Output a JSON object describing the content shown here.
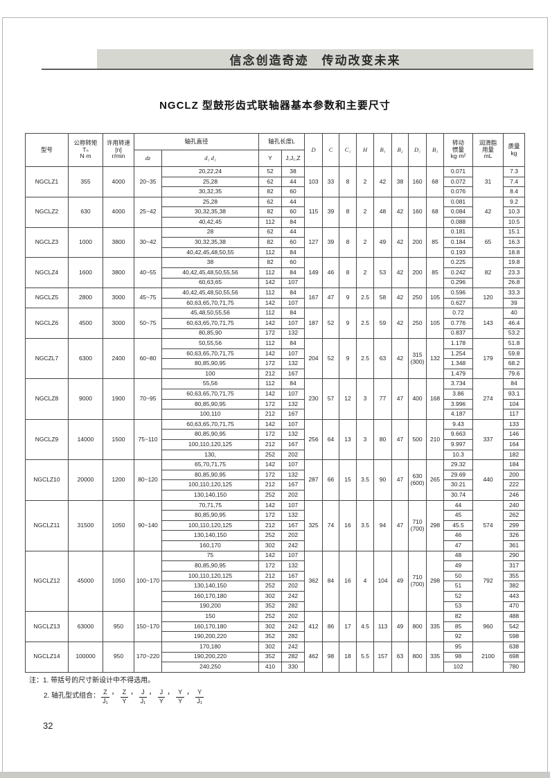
{
  "banner": {
    "slogan": "信念创造奇迹　传动改变未来"
  },
  "doc": {
    "title": "NGCLZ 型鼓形齿式联轴器基本参数和主要尺寸",
    "page_number": "32"
  },
  "colors": {
    "banner_bg": "#d7d7d2",
    "rule": "#5c5c5a",
    "table_border": "#454545"
  },
  "table": {
    "headers": {
      "model": "型号",
      "torque": "公称转矩\nTₙ\nN·m",
      "speed": "许用转速\n[n]\nr/min",
      "bore_dia": "轴孔直径",
      "bore_len": "轴孔长度L",
      "sub_dz": "dᴢ",
      "sub_d1d2": "d₁ d₂",
      "sub_y": "Y",
      "sub_jjz": "J,J₁,Z",
      "dims": [
        "D",
        "C",
        "C₁",
        "H",
        "B₁",
        "B₂",
        "D₁",
        "B₃"
      ],
      "inertia": "转动\n惯量\nkg·m²",
      "grease": "润滑脂\n用量\nmL",
      "mass": "质量\nkg"
    },
    "rows": [
      {
        "model": "NGCLZ1",
        "torque": "355",
        "speed": "4000",
        "range": "20~35",
        "dims": [
          "103",
          "33",
          "8",
          "2",
          "42",
          "38",
          "160",
          "68"
        ],
        "grease": "31",
        "sub": [
          {
            "d": "20,22,24",
            "y": "52",
            "l": "38",
            "j": "0.071",
            "m": "7.3"
          },
          {
            "d": "25,28",
            "y": "62",
            "l": "44",
            "j": "0.072",
            "m": "7.4"
          },
          {
            "d": "30,32,35",
            "y": "82",
            "l": "60",
            "j": "0.076",
            "m": "8.4"
          }
        ]
      },
      {
        "model": "NGCLZ2",
        "torque": "630",
        "speed": "4000",
        "range": "25~42",
        "dims": [
          "115",
          "39",
          "8",
          "2",
          "48",
          "42",
          "160",
          "68"
        ],
        "grease": "42",
        "sub": [
          {
            "d": "25,28",
            "y": "62",
            "l": "44",
            "j": "0.081",
            "m": "9.2"
          },
          {
            "d": "30,32,35,38",
            "y": "82",
            "l": "60",
            "j": "0.084",
            "m": "10.3"
          },
          {
            "d": "40,42,45",
            "y": "112",
            "l": "84",
            "j": "0.088",
            "m": "10.5"
          }
        ]
      },
      {
        "model": "NGCLZ3",
        "torque": "1000",
        "speed": "3800",
        "range": "30~42",
        "dims": [
          "127",
          "39",
          "8",
          "2",
          "49",
          "42",
          "200",
          "85"
        ],
        "grease": "65",
        "sub": [
          {
            "d": "28",
            "y": "62",
            "l": "44",
            "j": "0.181",
            "m": "15.1"
          },
          {
            "d": "30,32,35,38",
            "y": "82",
            "l": "60",
            "j": "0.184",
            "m": "16.3"
          },
          {
            "d": "40,42,45,48,50,55",
            "y": "112",
            "l": "84",
            "j": "0.193",
            "m": "18.8"
          }
        ]
      },
      {
        "model": "NGCLZ4",
        "torque": "1600",
        "speed": "3800",
        "range": "40~55",
        "dims": [
          "149",
          "46",
          "8",
          "2",
          "53",
          "42",
          "200",
          "85"
        ],
        "grease": "82",
        "sub": [
          {
            "d": "38",
            "y": "82",
            "l": "60",
            "j": "0.225",
            "m": "19.8"
          },
          {
            "d": "40,42,45,48,50,55,56",
            "y": "112",
            "l": "84",
            "j": "0.242",
            "m": "23.3"
          },
          {
            "d": "60,63,65",
            "y": "142",
            "l": "107",
            "j": "0.296",
            "m": "26.8"
          }
        ]
      },
      {
        "model": "NGCLZ5",
        "torque": "2800",
        "speed": "3000",
        "range": "45~75",
        "dims": [
          "167",
          "47",
          "9",
          "2.5",
          "58",
          "42",
          "250",
          "105"
        ],
        "grease": "120",
        "sub": [
          {
            "d": "40,42,45,48,50,55,56",
            "y": "112",
            "l": "84",
            "j": "0.596",
            "m": "33.3"
          },
          {
            "d": "60,63,65,70,71,75",
            "y": "142",
            "l": "107",
            "j": "0.627",
            "m": "39"
          }
        ]
      },
      {
        "model": "NGCLZ6",
        "torque": "4500",
        "speed": "3000",
        "range": "50~75",
        "dims": [
          "187",
          "52",
          "9",
          "2.5",
          "59",
          "42",
          "250",
          "105"
        ],
        "grease": "143",
        "sub": [
          {
            "d": "45,48,50,55,56",
            "y": "112",
            "l": "84",
            "j": "0.72",
            "m": "40"
          },
          {
            "d": "60,63,65,70,71,75",
            "y": "142",
            "l": "107",
            "j": "0.776",
            "m": "46.4"
          },
          {
            "d": "80,85,90",
            "y": "172",
            "l": "132",
            "j": "0.837",
            "m": "53.2"
          }
        ]
      },
      {
        "model": "NGCZL7",
        "torque": "6300",
        "speed": "2400",
        "range": "60~80",
        "dims": [
          "204",
          "52",
          "9",
          "2.5",
          "63",
          "42",
          "315\n(300)",
          "132"
        ],
        "grease": "179",
        "sub": [
          {
            "d": "50,55,56",
            "y": "112",
            "l": "84",
            "j": "1.178",
            "m": "51.8"
          },
          {
            "d": "60,63,65,70,71,75",
            "y": "142",
            "l": "107",
            "j": "1.254",
            "m": "59.8"
          },
          {
            "d": "80,85,90,95",
            "y": "172",
            "l": "132",
            "j": "1.348",
            "m": "68.2"
          },
          {
            "d": "100",
            "y": "212",
            "l": "167",
            "j": "1.479",
            "m": "79.6"
          }
        ]
      },
      {
        "model": "NGCLZ8",
        "torque": "9000",
        "speed": "1900",
        "range": "70~95",
        "dims": [
          "230",
          "57",
          "12",
          "3",
          "77",
          "47",
          "400",
          "168"
        ],
        "grease": "274",
        "sub": [
          {
            "d": "55,56",
            "y": "112",
            "l": "84",
            "j": "3.734",
            "m": "84"
          },
          {
            "d": "60,63,65,70,71,75",
            "y": "142",
            "l": "107",
            "j": "3.86",
            "m": "93.1"
          },
          {
            "d": "80,85,90,95",
            "y": "172",
            "l": "132",
            "j": "3.996",
            "m": "104"
          },
          {
            "d": "100,110",
            "y": "212",
            "l": "167",
            "j": "4.187",
            "m": "117"
          }
        ]
      },
      {
        "model": "NGCLZ9",
        "torque": "14000",
        "speed": "1500",
        "range": "75~110",
        "dims": [
          "256",
          "64",
          "13",
          "3",
          "80",
          "47",
          "500",
          "210"
        ],
        "grease": "337",
        "sub": [
          {
            "d": "60,63,65,70,71,75",
            "y": "142",
            "l": "107",
            "j": "9.43",
            "m": "133"
          },
          {
            "d": "80,85,90,95",
            "y": "172",
            "l": "132",
            "j": "9.663",
            "m": "146"
          },
          {
            "d": "100,110,120,125",
            "y": "212",
            "l": "167",
            "j": "9.997",
            "m": "164"
          },
          {
            "d": "130,",
            "y": "252",
            "l": "202",
            "j": "10.3",
            "m": "182"
          }
        ]
      },
      {
        "model": "NGCLZ10",
        "torque": "20000",
        "speed": "1200",
        "range": "80~120",
        "dims": [
          "287",
          "66",
          "15",
          "3.5",
          "90",
          "47",
          "630\n(600)",
          "265"
        ],
        "grease": "440",
        "sub": [
          {
            "d": "65,70,71,75",
            "y": "142",
            "l": "107",
            "j": "29.32",
            "m": "184"
          },
          {
            "d": "80,85,90,95",
            "y": "172",
            "l": "132",
            "j": "29.69",
            "m": "200"
          },
          {
            "d": "100,110,120,125",
            "y": "212",
            "l": "167",
            "j": "30.21",
            "m": "222"
          },
          {
            "d": "130,140,150",
            "y": "252",
            "l": "202",
            "j": "30.74",
            "m": "246"
          }
        ]
      },
      {
        "model": "NGCLZ11",
        "torque": "31500",
        "speed": "1050",
        "range": "90~140",
        "dims": [
          "325",
          "74",
          "16",
          "3.5",
          "94",
          "47",
          "710\n(700)",
          "298"
        ],
        "grease": "574",
        "sub": [
          {
            "d": "70,71,75",
            "y": "142",
            "l": "107",
            "j": "44",
            "m": "240"
          },
          {
            "d": "80,85,90,95",
            "y": "172",
            "l": "132",
            "j": "45",
            "m": "262"
          },
          {
            "d": "100,110,120,125",
            "y": "212",
            "l": "167",
            "j": "45.5",
            "m": "299"
          },
          {
            "d": "130,140,150",
            "y": "252",
            "l": "202",
            "j": "46",
            "m": "326"
          },
          {
            "d": "160,170",
            "y": "302",
            "l": "242",
            "j": "47",
            "m": "361"
          }
        ]
      },
      {
        "model": "NGCLZ12",
        "torque": "45000",
        "speed": "1050",
        "range": "100~170",
        "dims": [
          "362",
          "84",
          "16",
          "4",
          "104",
          "49",
          "710\n(700)",
          "298"
        ],
        "grease": "792",
        "sub": [
          {
            "d": "75",
            "y": "142",
            "l": "107",
            "j": "48",
            "m": "290"
          },
          {
            "d": "80,85,90,95",
            "y": "172",
            "l": "132",
            "j": "49",
            "m": "317"
          },
          {
            "d": "100,110,120,125",
            "y": "212",
            "l": "167",
            "j": "50",
            "m": "355"
          },
          {
            "d": "130,140,150",
            "y": "252",
            "l": "202",
            "j": "51",
            "m": "382"
          },
          {
            "d": "160,170,180",
            "y": "302",
            "l": "242",
            "j": "52",
            "m": "443"
          },
          {
            "d": "190,200",
            "y": "352",
            "l": "282",
            "j": "53",
            "m": "470"
          }
        ]
      },
      {
        "model": "NGCLZ13",
        "torque": "63000",
        "speed": "950",
        "range": "150~170",
        "dims": [
          "412",
          "86",
          "17",
          "4.5",
          "113",
          "49",
          "800",
          "335"
        ],
        "grease": "960",
        "sub": [
          {
            "d": "150",
            "y": "252",
            "l": "202",
            "j": "82",
            "m": "488"
          },
          {
            "d": "160,170,180",
            "y": "302",
            "l": "242",
            "j": "85",
            "m": "542"
          },
          {
            "d": "190,200,220",
            "y": "352",
            "l": "282",
            "j": "92",
            "m": "598"
          }
        ]
      },
      {
        "model": "NGCLZ14",
        "torque": "100000",
        "speed": "950",
        "range": "170~220",
        "dims": [
          "462",
          "98",
          "18",
          "5.5",
          "157",
          "63",
          "800",
          "335"
        ],
        "grease": "2100",
        "sub": [
          {
            "d": "170,180",
            "y": "302",
            "l": "242",
            "j": "95",
            "m": "638"
          },
          {
            "d": "190,200,220",
            "y": "352",
            "l": "282",
            "j": "98",
            "m": "698"
          },
          {
            "d": "240,250",
            "y": "410",
            "l": "330",
            "j": "102",
            "m": "780"
          }
        ]
      }
    ]
  },
  "notes": {
    "line1": "注：1. 带括号的尺寸新设计中不得选用。",
    "line2_prefix": "2. 轴孔型式组合：",
    "combo_separator": "，",
    "combos": [
      {
        "num": "Z",
        "den": "J₁"
      },
      {
        "num": "Z",
        "den": "Y"
      },
      {
        "num": "J",
        "den": "J₁"
      },
      {
        "num": "J",
        "den": "Y"
      },
      {
        "num": "Y",
        "den": "Y"
      },
      {
        "num": "Y",
        "den": "J₁"
      }
    ]
  }
}
